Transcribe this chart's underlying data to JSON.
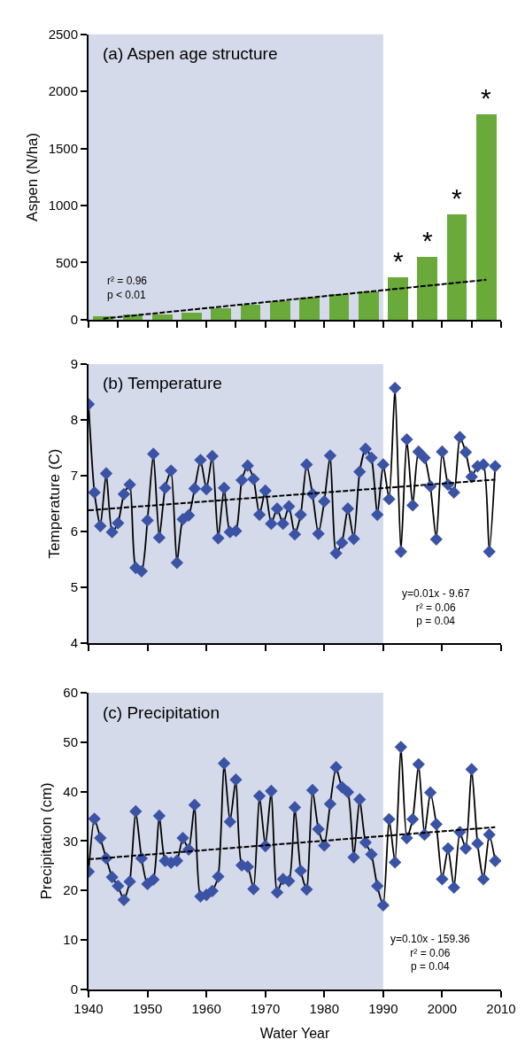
{
  "chart_data": [
    {
      "type": "bar",
      "title": "(a) Aspen age structure",
      "ylabel": "Aspen (N/ha)",
      "xlim": [
        1940,
        2010
      ],
      "xticks": [
        1940,
        1945,
        1950,
        1955,
        1960,
        1965,
        1970,
        1975,
        1980,
        1985,
        1990,
        1995,
        2000,
        2005,
        2010
      ],
      "ylim": [
        0,
        2500
      ],
      "yticks": [
        0,
        500,
        1000,
        1500,
        2000,
        2500
      ],
      "tick_labels": "y",
      "bands": [
        {
          "axis": "x",
          "from": 1940,
          "to": 1990,
          "color": "#d5daea"
        }
      ],
      "series": [
        {
          "color": "#6aaa3a",
          "x": [
            1942.5,
            1947.5,
            1952.5,
            1957.5,
            1962.5,
            1967.5,
            1972.5,
            1977.5,
            1982.5,
            1987.5,
            1992.5,
            1997.5,
            2002.5,
            2007.5
          ],
          "values": [
            30,
            45,
            45,
            65,
            100,
            135,
            165,
            195,
            230,
            250,
            370,
            550,
            925,
            1800
          ]
        },
        {
          "type": "line",
          "color": "#000000",
          "line_style": "dashed",
          "marker": "none",
          "x": [
            1942.5,
            2007.5
          ],
          "values": [
            10,
            350
          ]
        }
      ],
      "annotations": [
        {
          "text": "*",
          "x": 1992.5,
          "y": 370
        },
        {
          "text": "*",
          "x": 1997.5,
          "y": 550
        },
        {
          "text": "*",
          "x": 2002.5,
          "y": 925
        },
        {
          "text": "*",
          "x": 2007.5,
          "y": 1800
        },
        "r² = 0.96",
        "p < 0.01"
      ]
    },
    {
      "type": "line",
      "title": "(b) Temperature",
      "ylabel": "Temperature (C)",
      "xlim": [
        1940,
        2010
      ],
      "xticks": [
        1940,
        1950,
        1960,
        1970,
        1980,
        1990,
        2000,
        2010
      ],
      "ylim": [
        4,
        9
      ],
      "yticks": [
        4,
        5,
        6,
        7,
        8,
        9
      ],
      "tick_labels": "y",
      "bands": [
        {
          "axis": "x",
          "from": 1940,
          "to": 1990,
          "color": "#d5daea"
        }
      ],
      "series": [
        {
          "color": "#000000",
          "marker": "diamond",
          "line_style": "solid",
          "colors": [
            "#3a53a4",
            "#3a53a4",
            "#3a53a4",
            "#3a53a4",
            "#3a53a4",
            "#3a53a4",
            "#3a53a4",
            "#3a53a4",
            "#3a53a4",
            "#3a53a4",
            "#3a53a4",
            "#3a53a4",
            "#3a53a4",
            "#3a53a4",
            "#3a53a4",
            "#3a53a4",
            "#3a53a4",
            "#3a53a4",
            "#3a53a4",
            "#3a53a4",
            "#3a53a4",
            "#3a53a4",
            "#3a53a4",
            "#3a53a4",
            "#3a53a4",
            "#3a53a4",
            "#3a53a4",
            "#3a53a4",
            "#3a53a4",
            "#3a53a4",
            "#3a53a4",
            "#3a53a4",
            "#3a53a4",
            "#3a53a4",
            "#3a53a4",
            "#3a53a4",
            "#3a53a4",
            "#3a53a4",
            "#3a53a4",
            "#3a53a4",
            "#3a53a4",
            "#3a53a4",
            "#3a53a4",
            "#3a53a4",
            "#3a53a4",
            "#3a53a4",
            "#3a53a4",
            "#3a53a4",
            "#3a53a4",
            "#3a53a4",
            "#3a53a4",
            "#3a53a4",
            "#3a53a4",
            "#3a53a4",
            "#3a53a4",
            "#3a53a4",
            "#3a53a4",
            "#3a53a4",
            "#3a53a4",
            "#3a53a4",
            "#3a53a4",
            "#3a53a4",
            "#3a53a4",
            "#3a53a4",
            "#3a53a4",
            "#3a53a4",
            "#3a53a4",
            "#3a53a4",
            "#3a53a4",
            "#3a53a4"
          ],
          "x": [
            1940,
            1941,
            1942,
            1943,
            1944,
            1945,
            1946,
            1947,
            1948,
            1949,
            1950,
            1951,
            1952,
            1953,
            1954,
            1955,
            1956,
            1957,
            1958,
            1959,
            1960,
            1961,
            1962,
            1963,
            1964,
            1965,
            1966,
            1967,
            1968,
            1969,
            1970,
            1971,
            1972,
            1973,
            1974,
            1975,
            1976,
            1977,
            1978,
            1979,
            1980,
            1981,
            1982,
            1983,
            1984,
            1985,
            1986,
            1987,
            1988,
            1989,
            1990,
            1991,
            1992,
            1993,
            1994,
            1995,
            1996,
            1997,
            1998,
            1999,
            2000,
            2001,
            2002,
            2003,
            2004,
            2005,
            2006,
            2007,
            2008,
            2009
          ],
          "values": [
            8.28,
            6.7,
            6.1,
            7.04,
            5.99,
            6.15,
            6.67,
            6.84,
            5.35,
            5.29,
            6.2,
            7.39,
            5.89,
            6.78,
            7.09,
            5.44,
            6.22,
            6.29,
            6.77,
            7.28,
            6.76,
            7.35,
            5.88,
            6.78,
            5.99,
            6.01,
            6.92,
            7.18,
            6.94,
            6.3,
            6.73,
            6.14,
            6.41,
            6.14,
            6.45,
            5.95,
            6.3,
            7.2,
            6.67,
            5.96,
            6.54,
            7.36,
            5.61,
            5.8,
            6.41,
            5.87,
            7.07,
            7.48,
            7.32,
            6.3,
            7.2,
            6.58,
            8.57,
            5.64,
            7.65,
            6.47,
            7.43,
            7.32,
            6.81,
            5.86,
            7.43,
            6.84,
            6.7,
            7.69,
            7.42,
            6.98,
            7.17,
            7.2,
            5.64,
            7.17
          ]
        },
        {
          "type": "line",
          "color": "#000000",
          "line_style": "dashed",
          "marker": "none",
          "x": [
            1940,
            2009
          ],
          "values": [
            6.38,
            6.93
          ]
        }
      ],
      "annotations": [
        "y=0.01x - 9.67",
        "r² = 0.06",
        "p = 0.04"
      ]
    },
    {
      "type": "line",
      "title": "(c) Precipitation",
      "ylabel": "Precipitation (cm)",
      "xlabel": "Water Year",
      "xlim": [
        1940,
        2010
      ],
      "xticks": [
        1940,
        1950,
        1960,
        1970,
        1980,
        1990,
        2000,
        2010
      ],
      "ylim": [
        0,
        60
      ],
      "yticks": [
        0,
        10,
        20,
        30,
        40,
        50,
        60
      ],
      "bands": [
        {
          "axis": "x",
          "from": 1940,
          "to": 1990,
          "color": "#d5daea"
        }
      ],
      "series": [
        {
          "color": "#000000",
          "marker": "diamond",
          "line_style": "solid",
          "colors": [
            "#3a53a4",
            "#3a53a4",
            "#3a53a4",
            "#3a53a4",
            "#3a53a4",
            "#3a53a4",
            "#3a53a4",
            "#3a53a4",
            "#3a53a4",
            "#3a53a4",
            "#3a53a4",
            "#3a53a4",
            "#3a53a4",
            "#3a53a4",
            "#3a53a4",
            "#3a53a4",
            "#3a53a4",
            "#3a53a4",
            "#3a53a4",
            "#3a53a4",
            "#3a53a4",
            "#3a53a4",
            "#3a53a4",
            "#3a53a4",
            "#3a53a4",
            "#3a53a4",
            "#3a53a4",
            "#3a53a4",
            "#3a53a4",
            "#3a53a4",
            "#3a53a4",
            "#3a53a4",
            "#3a53a4",
            "#3a53a4",
            "#3a53a4",
            "#3a53a4",
            "#3a53a4",
            "#3a53a4",
            "#3a53a4",
            "#3a53a4",
            "#3a53a4",
            "#3a53a4",
            "#3a53a4",
            "#3a53a4",
            "#3a53a4",
            "#3a53a4",
            "#3a53a4",
            "#3a53a4",
            "#3a53a4",
            "#3a53a4",
            "#3a53a4",
            "#3a53a4",
            "#3a53a4",
            "#3a53a4",
            "#3a53a4",
            "#3a53a4",
            "#3a53a4",
            "#3a53a4",
            "#3a53a4",
            "#3a53a4",
            "#3a53a4",
            "#3a53a4",
            "#3a53a4",
            "#3a53a4",
            "#3a53a4",
            "#3a53a4",
            "#3a53a4",
            "#3a53a4",
            "#3a53a4",
            "#3a53a4"
          ],
          "x": [
            1940,
            1941,
            1942,
            1943,
            1944,
            1945,
            1946,
            1947,
            1948,
            1949,
            1950,
            1951,
            1952,
            1953,
            1954,
            1955,
            1956,
            1957,
            1958,
            1959,
            1960,
            1961,
            1962,
            1963,
            1964,
            1965,
            1966,
            1967,
            1968,
            1969,
            1970,
            1971,
            1972,
            1973,
            1974,
            1975,
            1976,
            1977,
            1978,
            1979,
            1980,
            1981,
            1982,
            1983,
            1984,
            1985,
            1986,
            1987,
            1988,
            1989,
            1990,
            1991,
            1992,
            1993,
            1994,
            1995,
            1996,
            1997,
            1998,
            1999,
            2000,
            2001,
            2002,
            2003,
            2004,
            2005,
            2006,
            2007,
            2008,
            2009
          ],
          "values": [
            23.8,
            34.5,
            30.6,
            26.5,
            22.7,
            20.9,
            18.1,
            21.8,
            36,
            26.5,
            21.3,
            22.2,
            35.1,
            26,
            25.6,
            26,
            30.6,
            28.3,
            37.3,
            18.8,
            19.1,
            19.9,
            22.8,
            45.7,
            33.9,
            42.4,
            25.1,
            24.8,
            20.3,
            39.1,
            29,
            40.1,
            19.6,
            22.3,
            21.9,
            36.8,
            24,
            20.2,
            40.3,
            32.4,
            29.1,
            37.5,
            44.9,
            40.9,
            39.9,
            26.7,
            38.4,
            29.7,
            27.3,
            20.9,
            17,
            34.4,
            25.7,
            49,
            30.6,
            34.4,
            45.5,
            31.3,
            39.8,
            33.4,
            22.3,
            28.5,
            20.6,
            31.8,
            28.5,
            44.5,
            29.5,
            22.3,
            31.3,
            26
          ]
        },
        {
          "type": "line",
          "color": "#000000",
          "line_style": "dashed",
          "marker": "none",
          "x": [
            1940,
            2009
          ],
          "values": [
            26.3,
            32.8
          ]
        }
      ],
      "annotations": [
        "y=0.10x - 159.36",
        "r² = 0.06",
        "p = 0.04"
      ]
    }
  ]
}
